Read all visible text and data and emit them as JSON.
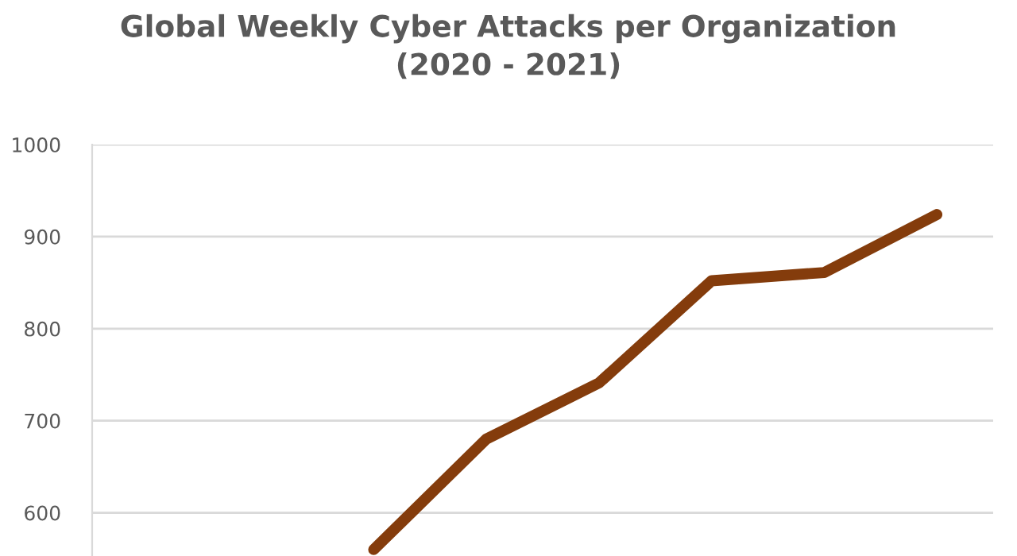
{
  "chart_data": {
    "type": "line",
    "title": "Global Weekly Cyber Attacks per Organization\n(2020 - 2021)",
    "categories": [
      null,
      null,
      null,
      null,
      null,
      null,
      null,
      null
    ],
    "series": [
      {
        "color": "#843c0c",
        "values": [
          null,
          null,
          560,
          680,
          741,
          852,
          861,
          924
        ]
      }
    ],
    "ylim": [
      553,
      1000
    ],
    "yticks": [
      600,
      700,
      800,
      900,
      1000
    ],
    "grid": "y",
    "tick_labels": "y",
    "marker": "none",
    "line_style": "solid"
  }
}
